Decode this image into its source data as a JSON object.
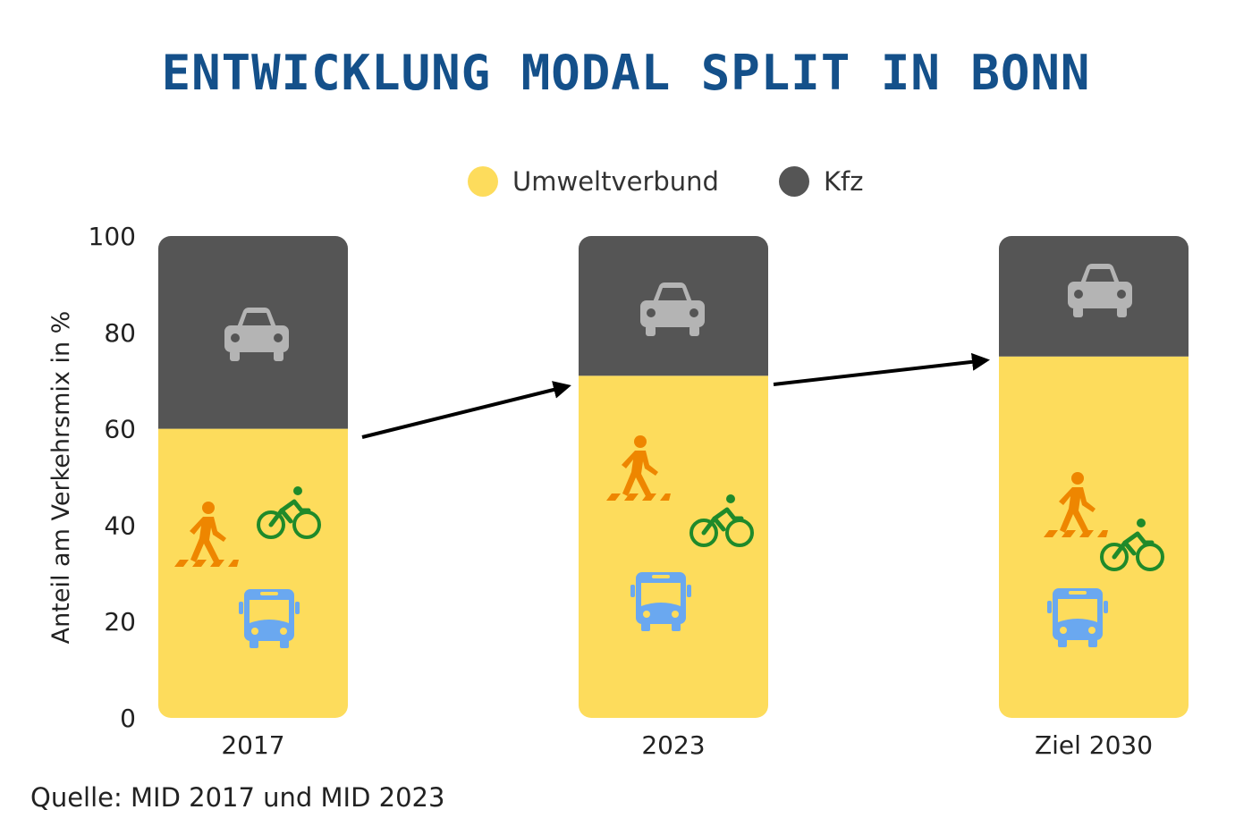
{
  "chart_data": {
    "type": "bar",
    "stacked": true,
    "title": "ENTWICKLUNG MODAL SPLIT IN BONN",
    "xlabel": "",
    "ylabel": "Anteil am Verkehrsmix in %",
    "ylim": [
      0,
      100
    ],
    "yticks": [
      "0",
      "20",
      "40",
      "60",
      "80",
      "100"
    ],
    "categories": [
      "2017",
      "2023",
      "Ziel 2030"
    ],
    "series": [
      {
        "name": "Umweltverbund",
        "color": "#fddc5c",
        "values": [
          60,
          71,
          75
        ]
      },
      {
        "name": "Kfz",
        "color": "#555555",
        "values": [
          40,
          29,
          25
        ]
      }
    ],
    "grid": false,
    "legend": "top-center",
    "annotations": [
      "arrow 2017 → 2023",
      "arrow 2023 → Ziel 2030"
    ],
    "icons": {
      "kfz": "car-icon",
      "umweltverbund": [
        "pedestrian-icon",
        "bicycle-icon",
        "bus-icon"
      ]
    },
    "icon_colors": {
      "car": "#b4b4b4",
      "pedestrian": "#ee8600",
      "bicycle": "#1f8a2a",
      "bus": "#6aa8f0"
    }
  },
  "source": "Quelle: MID 2017 und MID 2023"
}
